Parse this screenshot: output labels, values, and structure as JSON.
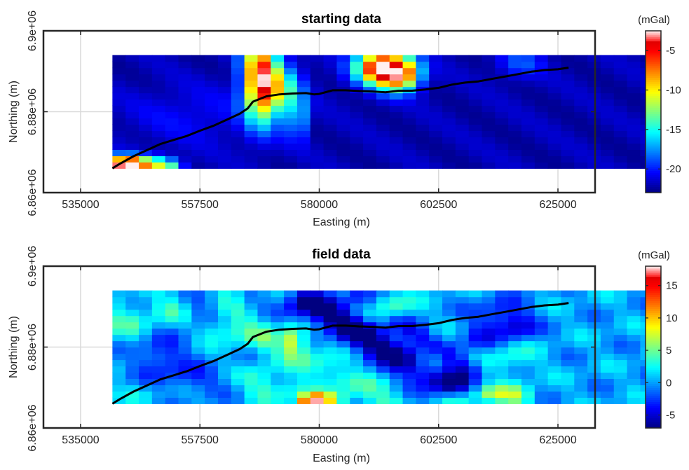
{
  "chart_data": [
    {
      "type": "heatmap",
      "title": "starting data",
      "xlabel": "Easting (m)",
      "ylabel": "Northing (m)",
      "xlim": [
        528000,
        632000
      ],
      "ylim": [
        6860000,
        6900000
      ],
      "xticks": [
        535000,
        557500,
        580000,
        602500,
        625000
      ],
      "xtick_labels": [
        "535000",
        "557500",
        "580000",
        "602500",
        "625000"
      ],
      "yticks": [
        6860000,
        6880000,
        6900000
      ],
      "ytick_labels": [
        "6.86e+06",
        "6.88e+06",
        "6.9e+06"
      ],
      "grid": true,
      "colorbar": {
        "label": "(mGal)",
        "range": [
          -23,
          -2.5
        ],
        "ticks": [
          -20,
          -15,
          -10,
          -5
        ],
        "tick_labels": [
          "-20",
          "-15",
          "-10",
          "-5"
        ],
        "colormap": "jet"
      },
      "data_extent": {
        "x": [
          541000,
          643000
        ],
        "y": [
          6866000,
          6894000
        ]
      },
      "grid_size": {
        "cols": 41,
        "rows": 18
      },
      "blobs": [
        {
          "x": 556000,
          "y": 6879000,
          "sx": 9000,
          "sy": 5000,
          "a": 1.5
        },
        {
          "x": 566500,
          "y": 6892500,
          "sx": 1600,
          "sy": 1800,
          "a": 0.8
        },
        {
          "x": 569000,
          "y": 6888000,
          "sx": 2300,
          "sy": 7000,
          "a": 18
        },
        {
          "x": 573500,
          "y": 6885000,
          "sx": 2500,
          "sy": 4500,
          "a": 7
        },
        {
          "x": 576000,
          "y": 6878000,
          "sx": 1100,
          "sy": 3500,
          "a": 6
        },
        {
          "x": 592000,
          "y": 6891000,
          "sx": 3500,
          "sy": 3000,
          "a": 20
        },
        {
          "x": 594500,
          "y": 6887500,
          "sx": 2500,
          "sy": 2500,
          "a": 6
        },
        {
          "x": 597000,
          "y": 6889500,
          "sx": 2000,
          "sy": 2500,
          "a": 6
        },
        {
          "x": 618000,
          "y": 6892000,
          "sx": 3000,
          "sy": 2500,
          "a": 3
        },
        {
          "x": 543500,
          "y": 6867000,
          "sx": 2600,
          "sy": 1500,
          "a": 21
        },
        {
          "x": 549000,
          "y": 6867000,
          "sx": 2500,
          "sy": 1500,
          "a": 8
        },
        {
          "x": 552000,
          "y": 6866500,
          "sx": 1800,
          "sy": 1200,
          "a": 5
        }
      ],
      "line": {
        "x": [
          541000,
          542500,
          545000,
          547500,
          550000,
          552500,
          555000,
          557500,
          560000,
          562500,
          565000,
          566500,
          567500,
          570000,
          572500,
          575000,
          577500,
          579000,
          580000,
          582500,
          585000,
          587500,
          590000,
          592500,
          595000,
          597500,
          600000,
          602500,
          605000,
          607500,
          610000,
          612500,
          615000,
          617500,
          620000,
          622500,
          625000,
          627000
        ],
        "y": [
          6866000,
          6867200,
          6869000,
          6870500,
          6872000,
          6873000,
          6874000,
          6875300,
          6876500,
          6878000,
          6879500,
          6880800,
          6882500,
          6883800,
          6884300,
          6884500,
          6884600,
          6884300,
          6884400,
          6885300,
          6885300,
          6885100,
          6885000,
          6884800,
          6885200,
          6885200,
          6885500,
          6885900,
          6886700,
          6887200,
          6887500,
          6888100,
          6888700,
          6889300,
          6889900,
          6890300,
          6890500,
          6890900
        ]
      }
    },
    {
      "type": "heatmap",
      "title": "field data",
      "xlabel": "Easting (m)",
      "ylabel": "Northing (m)",
      "xlim": [
        528000,
        632000
      ],
      "ylim": [
        6860000,
        6900000
      ],
      "xticks": [
        535000,
        557500,
        580000,
        602500,
        625000
      ],
      "xtick_labels": [
        "535000",
        "557500",
        "580000",
        "602500",
        "625000"
      ],
      "yticks": [
        6860000,
        6880000,
        6900000
      ],
      "ytick_labels": [
        "6.86e+06",
        "6.88e+06",
        "6.9e+06"
      ],
      "grid": true,
      "colorbar": {
        "label": "(mGal)",
        "range": [
          -7,
          18
        ],
        "ticks": [
          -5,
          0,
          5,
          10,
          15
        ],
        "tick_labels": [
          "-5",
          "0",
          "5",
          "10",
          "15"
        ],
        "colormap": "jet"
      },
      "data_extent": {
        "x": [
          541000,
          643000
        ],
        "y": [
          6866000,
          6894000
        ]
      },
      "grid_size": {
        "cols": 41,
        "rows": 18
      },
      "bands": [
        {
          "x0": 577500,
          "y0": 6891000,
          "x1": 604500,
          "y1": 6871000,
          "w": 2600,
          "a": -8
        },
        {
          "x0": 587500,
          "y0": 6892500,
          "x1": 608000,
          "y1": 6875000,
          "w": 1800,
          "a": -4
        },
        {
          "x0": 571000,
          "y0": 6882000,
          "x1": 592000,
          "y1": 6866500,
          "w": 2500,
          "a": 3.5
        },
        {
          "x0": 564000,
          "y0": 6893500,
          "x1": 569000,
          "y1": 6870000,
          "w": 2300,
          "a": 3
        }
      ],
      "blobs": [
        {
          "x": 543500,
          "y": 6886500,
          "sx": 3500,
          "sy": 3500,
          "a": 3
        },
        {
          "x": 551500,
          "y": 6889500,
          "sx": 2500,
          "sy": 2500,
          "a": 3
        },
        {
          "x": 557500,
          "y": 6888000,
          "sx": 2000,
          "sy": 2500,
          "a": -2
        },
        {
          "x": 566000,
          "y": 6891500,
          "sx": 2000,
          "sy": 2000,
          "a": -3
        },
        {
          "x": 561000,
          "y": 6884500,
          "sx": 2500,
          "sy": 2000,
          "a": 3
        },
        {
          "x": 550000,
          "y": 6878000,
          "sx": 3500,
          "sy": 3500,
          "a": -4
        },
        {
          "x": 556000,
          "y": 6872000,
          "sx": 4000,
          "sy": 2500,
          "a": -3
        },
        {
          "x": 575500,
          "y": 6882000,
          "sx": 1100,
          "sy": 2500,
          "a": 8
        },
        {
          "x": 579000,
          "y": 6867000,
          "sx": 1800,
          "sy": 1200,
          "a": 14
        },
        {
          "x": 578000,
          "y": 6866000,
          "sx": 1200,
          "sy": 800,
          "a": 6
        },
        {
          "x": 582500,
          "y": 6867200,
          "sx": 1800,
          "sy": 1200,
          "a": 5
        },
        {
          "x": 574000,
          "y": 6869500,
          "sx": 3000,
          "sy": 2000,
          "a": 3
        },
        {
          "x": 593000,
          "y": 6889500,
          "sx": 3000,
          "sy": 2500,
          "a": 6
        },
        {
          "x": 601000,
          "y": 6877000,
          "sx": 2500,
          "sy": 3000,
          "a": 5
        },
        {
          "x": 605000,
          "y": 6867000,
          "sx": 2500,
          "sy": 1500,
          "a": 3
        },
        {
          "x": 612000,
          "y": 6868500,
          "sx": 2000,
          "sy": 1500,
          "a": 5
        },
        {
          "x": 616500,
          "y": 6868000,
          "sx": 2500,
          "sy": 1800,
          "a": 6
        },
        {
          "x": 616000,
          "y": 6877500,
          "sx": 3500,
          "sy": 3000,
          "a": 3
        },
        {
          "x": 610000,
          "y": 6882000,
          "sx": 3000,
          "sy": 2500,
          "a": -3
        },
        {
          "x": 614000,
          "y": 6888000,
          "sx": 3500,
          "sy": 3000,
          "a": -4
        },
        {
          "x": 617500,
          "y": 6884500,
          "sx": 2500,
          "sy": 2500,
          "a": -4
        },
        {
          "x": 567000,
          "y": 6877500,
          "sx": 2000,
          "sy": 2500,
          "a": -2.5
        },
        {
          "x": 545500,
          "y": 6868500,
          "sx": 3500,
          "sy": 1800,
          "a": 1
        }
      ],
      "line": {
        "x": [
          541000,
          542500,
          545000,
          547500,
          550000,
          552500,
          555000,
          557500,
          560000,
          562500,
          565000,
          566500,
          567500,
          570000,
          572500,
          575000,
          577500,
          579000,
          580000,
          582500,
          585000,
          587500,
          590000,
          592500,
          595000,
          597500,
          600000,
          602500,
          605000,
          607500,
          610000,
          612500,
          615000,
          617500,
          620000,
          622500,
          625000,
          627000
        ],
        "y": [
          6866000,
          6867200,
          6869000,
          6870500,
          6872000,
          6873000,
          6874000,
          6875300,
          6876500,
          6878000,
          6879500,
          6880800,
          6882500,
          6883800,
          6884300,
          6884500,
          6884600,
          6884300,
          6884400,
          6885300,
          6885300,
          6885100,
          6885000,
          6884800,
          6885200,
          6885200,
          6885500,
          6885900,
          6886700,
          6887200,
          6887500,
          6888100,
          6888700,
          6889300,
          6889900,
          6890300,
          6890500,
          6890900
        ]
      }
    }
  ]
}
